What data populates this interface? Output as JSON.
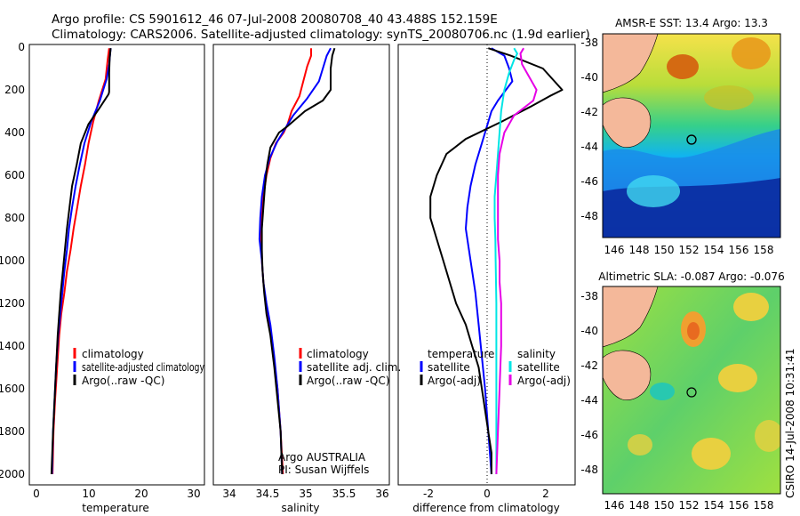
{
  "header": {
    "line1": "Argo profile: CS 5901612_46 07-Jul-2008 20080708_40 43.488S 152.159E",
    "line2": "Climatology: CARS2006. Satellite-adjusted climatology: synTS_20080706.nc (1.9d earlier)"
  },
  "colors": {
    "climatology": "#ff0000",
    "satellite": "#0000ff",
    "argo": "#000000",
    "sal_satellite": "#00e5e5",
    "sal_argo": "#e600e6"
  },
  "chart_data": [
    {
      "type": "line",
      "name_key": "temperature_panel",
      "xlabel": "temperature",
      "ylabel": "",
      "xlim": [
        -2,
        32
      ],
      "ylim": [
        2050,
        0
      ],
      "y_reversed": true,
      "xticks": [
        "0",
        "10",
        "20",
        "30"
      ],
      "yticks": [
        "0",
        "200",
        "400",
        "600",
        "800",
        "1000",
        "1200",
        "1400",
        "1600",
        "1800",
        "2000"
      ],
      "legend": [
        "climatology",
        "satellite-adjusted climatology",
        "Argo(..raw -QC)"
      ],
      "series": [
        {
          "name": "climatology",
          "color": "#ff0000",
          "points": [
            [
              13.5,
              5
            ],
            [
              13.2,
              60
            ],
            [
              12.8,
              150
            ],
            [
              11.5,
              250
            ],
            [
              10.4,
              350
            ],
            [
              9.5,
              450
            ],
            [
              8.8,
              550
            ],
            [
              8.0,
              650
            ],
            [
              7.3,
              750
            ],
            [
              6.6,
              850
            ],
            [
              6.0,
              950
            ],
            [
              5.3,
              1050
            ],
            [
              4.8,
              1150
            ],
            [
              4.2,
              1250
            ],
            [
              3.8,
              1350
            ],
            [
              3.4,
              1500
            ],
            [
              3.0,
              1650
            ],
            [
              2.7,
              1800
            ],
            [
              2.5,
              2000
            ]
          ]
        },
        {
          "name": "satellite-adjusted climatology",
          "color": "#0000ff",
          "points": [
            [
              13.8,
              5
            ],
            [
              13.5,
              80
            ],
            [
              13.0,
              150
            ],
            [
              11.7,
              250
            ],
            [
              10.0,
              350
            ],
            [
              8.7,
              450
            ],
            [
              7.8,
              550
            ],
            [
              7.0,
              650
            ],
            [
              6.3,
              750
            ],
            [
              5.7,
              850
            ],
            [
              5.3,
              950
            ],
            [
              4.8,
              1050
            ],
            [
              4.4,
              1150
            ],
            [
              4.0,
              1250
            ],
            [
              3.6,
              1350
            ],
            [
              3.2,
              1500
            ],
            [
              2.9,
              1650
            ],
            [
              2.6,
              1800
            ],
            [
              2.4,
              2000
            ]
          ]
        },
        {
          "name": "Argo(..raw -QC)",
          "color": "#000000",
          "points": [
            [
              13.8,
              5
            ],
            [
              13.6,
              50
            ],
            [
              13.5,
              120
            ],
            [
              13.5,
              210
            ],
            [
              13.4,
              220
            ],
            [
              11.5,
              290
            ],
            [
              9.5,
              360
            ],
            [
              8.0,
              450
            ],
            [
              7.2,
              550
            ],
            [
              6.3,
              650
            ],
            [
              5.8,
              750
            ],
            [
              5.3,
              850
            ],
            [
              4.9,
              950
            ],
            [
              4.5,
              1050
            ],
            [
              4.1,
              1150
            ],
            [
              3.8,
              1250
            ],
            [
              3.5,
              1350
            ],
            [
              3.2,
              1500
            ],
            [
              2.9,
              1650
            ],
            [
              2.6,
              1800
            ],
            [
              2.3,
              2000
            ]
          ]
        }
      ]
    },
    {
      "type": "line",
      "name_key": "salinity_panel",
      "xlabel": "salinity",
      "xlim": [
        33.8,
        36.05
      ],
      "ylim": [
        2050,
        0
      ],
      "y_reversed": true,
      "xticks": [
        "34",
        "34.5",
        "35",
        "35.5",
        "36"
      ],
      "legend": [
        "climatology",
        "satellite adj. clim.",
        "Argo(..raw -QC)"
      ],
      "annotation": [
        "Argo AUSTRALIA",
        "PI: Susan Wijffels"
      ],
      "series": [
        {
          "name": "climatology",
          "color": "#ff0000",
          "points": [
            [
              35.05,
              5
            ],
            [
              35.05,
              40
            ],
            [
              35.0,
              90
            ],
            [
              34.95,
              160
            ],
            [
              34.9,
              230
            ],
            [
              34.8,
              300
            ],
            [
              34.75,
              360
            ],
            [
              34.7,
              400
            ],
            [
              34.6,
              450
            ],
            [
              34.53,
              520
            ],
            [
              34.48,
              600
            ],
            [
              34.44,
              700
            ],
            [
              34.42,
              800
            ],
            [
              34.41,
              900
            ],
            [
              34.42,
              1000
            ],
            [
              34.44,
              1100
            ],
            [
              34.47,
              1200
            ],
            [
              34.52,
              1300
            ],
            [
              34.57,
              1450
            ],
            [
              34.62,
              1600
            ],
            [
              34.66,
              1800
            ],
            [
              34.69,
              2000
            ]
          ]
        },
        {
          "name": "satellite adj. clim.",
          "color": "#0000ff",
          "points": [
            [
              35.3,
              5
            ],
            [
              35.25,
              40
            ],
            [
              35.2,
              100
            ],
            [
              35.15,
              160
            ],
            [
              35.0,
              240
            ],
            [
              34.82,
              320
            ],
            [
              34.72,
              380
            ],
            [
              34.62,
              440
            ],
            [
              34.52,
              520
            ],
            [
              34.46,
              600
            ],
            [
              34.42,
              700
            ],
            [
              34.4,
              800
            ],
            [
              34.39,
              900
            ],
            [
              34.42,
              1000
            ],
            [
              34.44,
              1100
            ],
            [
              34.48,
              1200
            ],
            [
              34.53,
              1300
            ],
            [
              34.58,
              1450
            ],
            [
              34.62,
              1600
            ],
            [
              34.66,
              1800
            ],
            [
              34.68,
              2000
            ]
          ]
        },
        {
          "name": "Argo(..raw -QC)",
          "color": "#000000",
          "points": [
            [
              35.35,
              5
            ],
            [
              35.32,
              40
            ],
            [
              35.3,
              100
            ],
            [
              35.3,
              170
            ],
            [
              35.3,
              200
            ],
            [
              35.2,
              250
            ],
            [
              34.97,
              300
            ],
            [
              34.75,
              370
            ],
            [
              34.64,
              400
            ],
            [
              34.53,
              470
            ],
            [
              34.49,
              550
            ],
            [
              34.46,
              650
            ],
            [
              34.44,
              750
            ],
            [
              34.42,
              850
            ],
            [
              34.42,
              950
            ],
            [
              34.43,
              1050
            ],
            [
              34.45,
              1150
            ],
            [
              34.48,
              1250
            ],
            [
              34.53,
              1350
            ],
            [
              34.58,
              1500
            ],
            [
              34.62,
              1650
            ],
            [
              34.66,
              1800
            ],
            [
              34.68,
              2000
            ]
          ]
        }
      ]
    },
    {
      "type": "line",
      "name_key": "difference_panel",
      "xlabel": "difference from climatology",
      "xlim": [
        -3,
        2.5
      ],
      "ylim": [
        2050,
        0
      ],
      "y_reversed": true,
      "xticks": [
        "-2",
        "0",
        "2"
      ],
      "legend_left_title": "temperature",
      "legend_right_title": "salinity",
      "legend": [
        "satellite",
        "Argo(-adj)",
        "satellite",
        "Argo(-adj)"
      ],
      "series": [
        {
          "name": "temperature satellite",
          "color": "#0000ff",
          "points": [
            [
              -0.1,
              5
            ],
            [
              0.3,
              40
            ],
            [
              0.45,
              100
            ],
            [
              0.55,
              160
            ],
            [
              0.1,
              250
            ],
            [
              -0.1,
              300
            ],
            [
              -0.2,
              350
            ],
            [
              -0.4,
              450
            ],
            [
              -0.6,
              550
            ],
            [
              -0.75,
              650
            ],
            [
              -0.85,
              750
            ],
            [
              -0.9,
              850
            ],
            [
              -0.8,
              950
            ],
            [
              -0.7,
              1050
            ],
            [
              -0.6,
              1150
            ],
            [
              -0.5,
              1300
            ],
            [
              -0.4,
              1450
            ],
            [
              -0.3,
              1600
            ],
            [
              -0.2,
              1800
            ],
            [
              -0.1,
              2000
            ]
          ]
        },
        {
          "name": "temperature Argo(-adj)",
          "color": "#000000",
          "points": [
            [
              -0.2,
              5
            ],
            [
              0.5,
              40
            ],
            [
              1.5,
              100
            ],
            [
              2.1,
              200
            ],
            [
              1.7,
              230
            ],
            [
              1.1,
              280
            ],
            [
              0.2,
              350
            ],
            [
              -0.9,
              430
            ],
            [
              -1.5,
              500
            ],
            [
              -1.8,
              600
            ],
            [
              -2.0,
              700
            ],
            [
              -2.0,
              800
            ],
            [
              -1.8,
              900
            ],
            [
              -1.6,
              1000
            ],
            [
              -1.4,
              1100
            ],
            [
              -1.2,
              1200
            ],
            [
              -0.9,
              1300
            ],
            [
              -0.7,
              1400
            ],
            [
              -0.5,
              1500
            ],
            [
              -0.4,
              1600
            ],
            [
              -0.3,
              1700
            ],
            [
              -0.2,
              1800
            ],
            [
              -0.1,
              1900
            ],
            [
              -0.1,
              2000
            ]
          ]
        },
        {
          "name": "salinity satellite",
          "color": "#00e5e5",
          "points": [
            [
              0.6,
              5
            ],
            [
              0.7,
              30
            ],
            [
              0.6,
              60
            ],
            [
              0.45,
              120
            ],
            [
              0.3,
              200
            ],
            [
              0.2,
              300
            ],
            [
              0.15,
              400
            ],
            [
              0.1,
              500
            ],
            [
              0.05,
              600
            ],
            [
              0.0,
              700
            ],
            [
              0.0,
              800
            ],
            [
              0.02,
              900
            ],
            [
              0.03,
              1000
            ],
            [
              0.04,
              1100
            ],
            [
              0.05,
              1200
            ],
            [
              0.05,
              1400
            ],
            [
              0.05,
              1600
            ],
            [
              0.05,
              1800
            ],
            [
              0.05,
              2000
            ]
          ]
        },
        {
          "name": "salinity Argo(-adj)",
          "color": "#e600e6",
          "points": [
            [
              0.9,
              5
            ],
            [
              0.8,
              30
            ],
            [
              0.85,
              80
            ],
            [
              1.3,
              200
            ],
            [
              1.2,
              250
            ],
            [
              0.6,
              320
            ],
            [
              0.3,
              400
            ],
            [
              0.15,
              500
            ],
            [
              0.1,
              600
            ],
            [
              0.1,
              700
            ],
            [
              0.1,
              800
            ],
            [
              0.1,
              900
            ],
            [
              0.15,
              1000
            ],
            [
              0.15,
              1100
            ],
            [
              0.2,
              1200
            ],
            [
              0.2,
              1300
            ],
            [
              0.2,
              1400
            ],
            [
              0.15,
              1600
            ],
            [
              0.1,
              1800
            ],
            [
              0.05,
              2000
            ]
          ]
        }
      ]
    }
  ],
  "maps": [
    {
      "title": "AMSR-E SST: 13.4 Argo: 13.3",
      "xticks": [
        "146",
        "148",
        "150",
        "152",
        "154",
        "156",
        "158"
      ],
      "yticks": [
        "-38",
        "-40",
        "-42",
        "-44",
        "-46",
        "-48"
      ]
    },
    {
      "title": "Altimetric SLA: -0.087 Argo: -0.076",
      "xticks": [
        "146",
        "148",
        "150",
        "152",
        "154",
        "156",
        "158"
      ],
      "yticks": [
        "-38",
        "-40",
        "-42",
        "-44",
        "-46",
        "-48"
      ]
    }
  ],
  "footer_vertical": "CSIRO 14-Jul-2008 10:31:41"
}
